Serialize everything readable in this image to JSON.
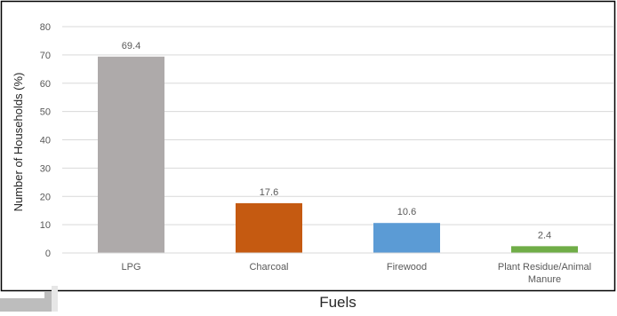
{
  "chart_data": {
    "type": "bar",
    "categories": [
      "LPG",
      "Charcoal",
      "Firewood",
      "Plant Residue/Animal Manure"
    ],
    "values": [
      69.4,
      17.6,
      10.6,
      2.4
    ],
    "data_labels": [
      "69.4",
      "17.6",
      "10.6",
      "2.4"
    ],
    "colors": [
      "#aeaaaa",
      "#c55a11",
      "#5b9bd5",
      "#70ad47"
    ],
    "title": "",
    "xlabel": "Fuels",
    "ylabel": "Number of Households (%)",
    "ylim": [
      0,
      80
    ],
    "yticks": [
      0,
      10,
      20,
      30,
      40,
      50,
      60,
      70,
      80
    ],
    "grid": true,
    "legend": "none"
  }
}
